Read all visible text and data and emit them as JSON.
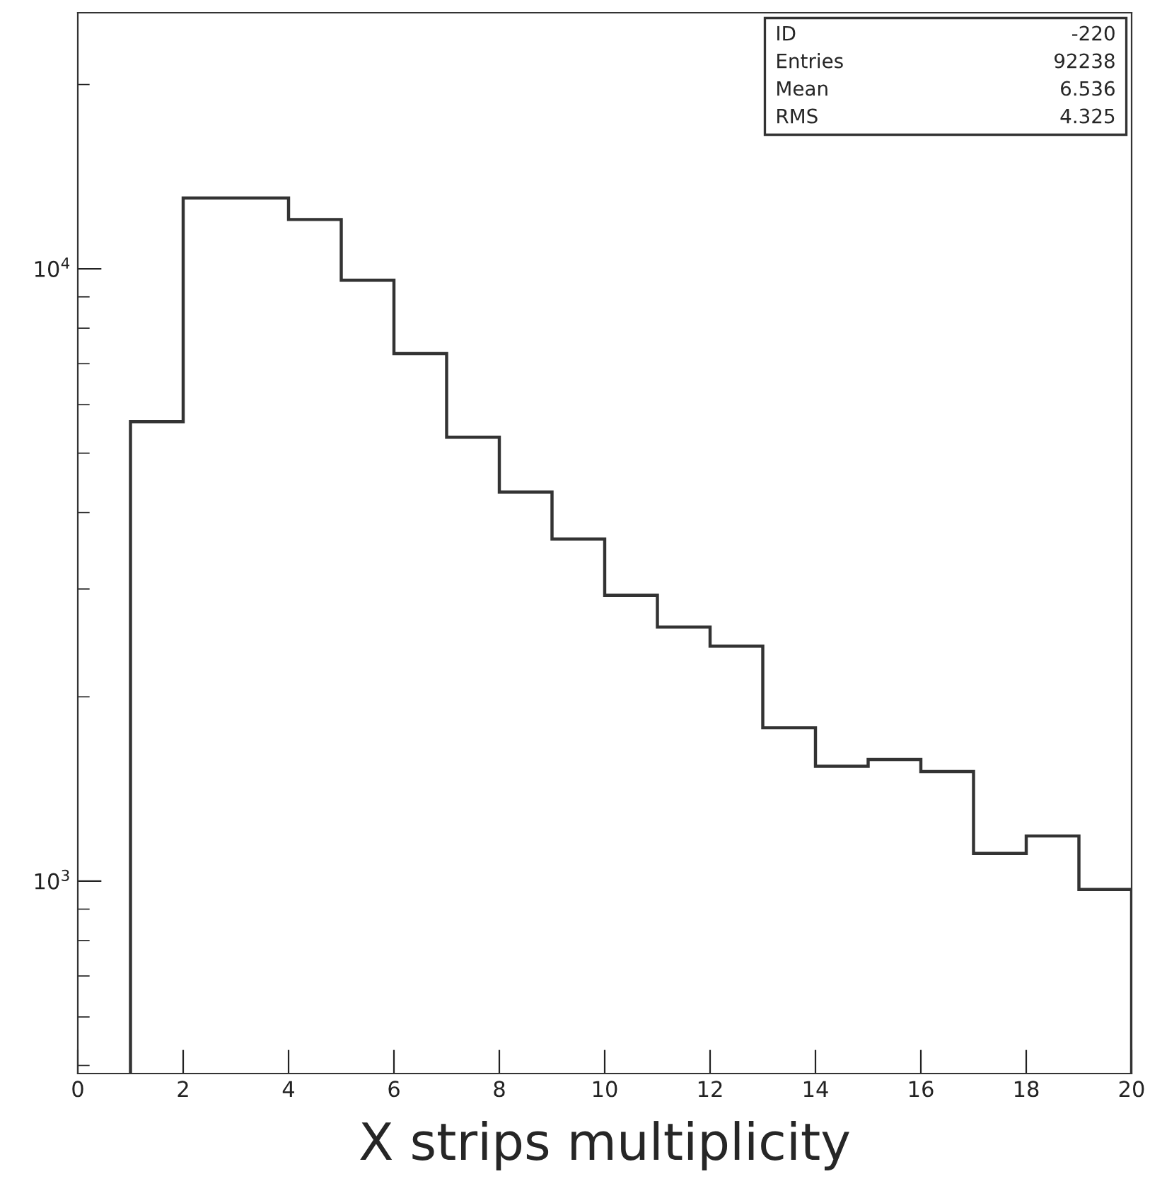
{
  "chart_data": {
    "type": "histogram",
    "xlabel": "X strips multiplicity",
    "bins": [
      1,
      2,
      3,
      4,
      5,
      6,
      7,
      8,
      9,
      10,
      11,
      12,
      13,
      14,
      15,
      16,
      17,
      18,
      19,
      20
    ],
    "values": [
      5630,
      13050,
      13050,
      12040,
      9580,
      7270,
      5310,
      4320,
      3620,
      2930,
      2600,
      2420,
      1780,
      1540,
      1580,
      1510,
      1110,
      1185,
      969
    ],
    "color": "#333333",
    "log": true,
    "xlim": [
      0,
      20
    ],
    "xticks": [
      0,
      2,
      4,
      6,
      8,
      10,
      12,
      14,
      16,
      18,
      20
    ],
    "ylim": [
      485,
      26200
    ],
    "yticks": [
      {
        "value": 500,
        "label": null
      },
      {
        "value": 600,
        "label": null
      },
      {
        "value": 700,
        "label": null
      },
      {
        "value": 800,
        "label": null
      },
      {
        "value": 900,
        "label": null
      },
      {
        "value": 1000,
        "label": "10$^{3}$"
      },
      {
        "value": 2000,
        "label": null
      },
      {
        "value": 3000,
        "label": null
      },
      {
        "value": 4000,
        "label": null
      },
      {
        "value": 5000,
        "label": null
      },
      {
        "value": 6000,
        "label": null
      },
      {
        "value": 7000,
        "label": null
      },
      {
        "value": 8000,
        "label": null
      },
      {
        "value": 9000,
        "label": null
      },
      {
        "value": 10000,
        "label": "10$^{4}$"
      },
      {
        "value": 20000,
        "label": null
      }
    ],
    "annotations": [
      "ID",
      "-220",
      "Entries",
      "92238",
      "Mean",
      "6.536",
      "RMS",
      "4.325"
    ],
    "grid": false,
    "legend": false
  }
}
